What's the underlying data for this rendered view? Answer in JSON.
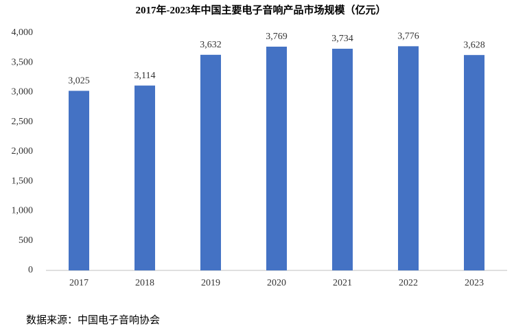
{
  "chart_data": {
    "type": "bar",
    "title": "2017年-2023年中国主要电子音响产品市场规模（亿元）",
    "categories": [
      "2017",
      "2018",
      "2019",
      "2020",
      "2021",
      "2022",
      "2023"
    ],
    "values": [
      3025,
      3114,
      3632,
      3769,
      3734,
      3776,
      3628
    ],
    "value_labels": [
      "3,025",
      "3,114",
      "3,632",
      "3,769",
      "3,734",
      "3,776",
      "3,628"
    ],
    "color": "#4472c4",
    "ylim": [
      0,
      4000
    ],
    "yticks": [
      0,
      500,
      {
        "value": 1000,
        "label": "1,000"
      },
      {
        "value": 1500,
        "label": "1,500"
      },
      {
        "value": 2000,
        "label": "2,000"
      },
      {
        "value": 2500,
        "label": "2,500"
      },
      {
        "value": 3000,
        "label": "3,000"
      },
      {
        "value": 3500,
        "label": "3,500"
      },
      {
        "value": 4000,
        "label": "4,000"
      }
    ],
    "grid": false,
    "source": "数据来源：中国电子音响协会"
  }
}
